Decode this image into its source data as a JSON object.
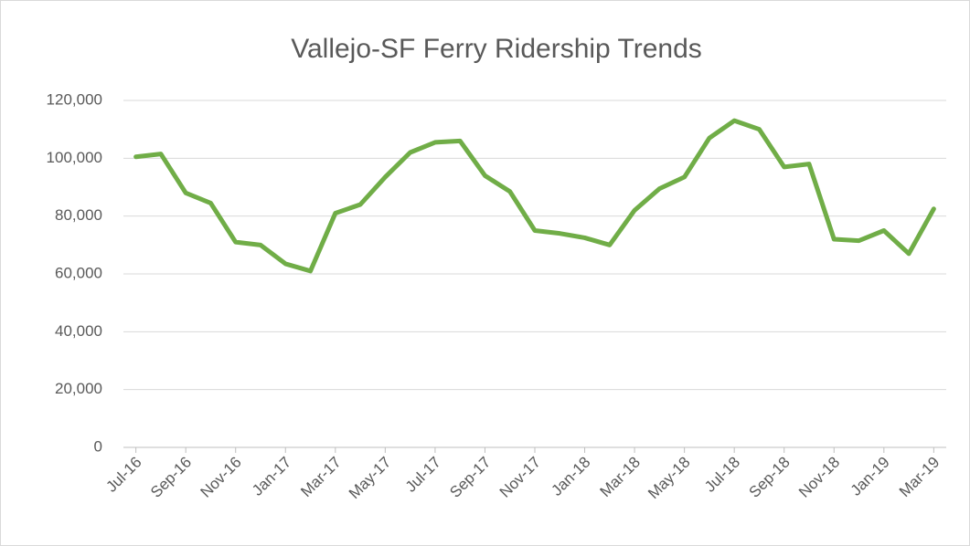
{
  "chart_data": {
    "type": "line",
    "title": "Vallejo-SF Ferry Ridership Trends",
    "categories": [
      "Jul-16",
      null,
      "Sep-16",
      null,
      "Nov-16",
      null,
      "Jan-17",
      null,
      "Mar-17",
      null,
      "May-17",
      null,
      "Jul-17",
      null,
      "Sep-17",
      null,
      "Nov-17",
      null,
      "Jan-18",
      null,
      "Mar-18",
      null,
      "May-18",
      null,
      "Jul-18",
      null,
      "Sep-18",
      null,
      "Nov-18",
      null,
      "Jan-19",
      null,
      "Mar-19"
    ],
    "values": [
      100500,
      101500,
      88000,
      84500,
      71000,
      70000,
      63500,
      61000,
      81000,
      84000,
      93500,
      102000,
      105500,
      106000,
      94000,
      88500,
      75000,
      74000,
      72500,
      70000,
      82000,
      89500,
      93500,
      107000,
      113000,
      110000,
      97000,
      98000,
      72000,
      71500,
      75000,
      67000,
      82500
    ],
    "color": "#70ad47",
    "ylim": [
      0,
      120000
    ],
    "yticks": [
      0,
      {
        "value": 20000,
        "label": "20,000"
      },
      {
        "value": 40000,
        "label": "40,000"
      },
      {
        "value": 60000,
        "label": "60,000"
      },
      {
        "value": 80000,
        "label": "80,000"
      },
      {
        "value": 100000,
        "label": "100,000"
      },
      {
        "value": 120000,
        "label": "120,000"
      }
    ],
    "grid": true
  }
}
